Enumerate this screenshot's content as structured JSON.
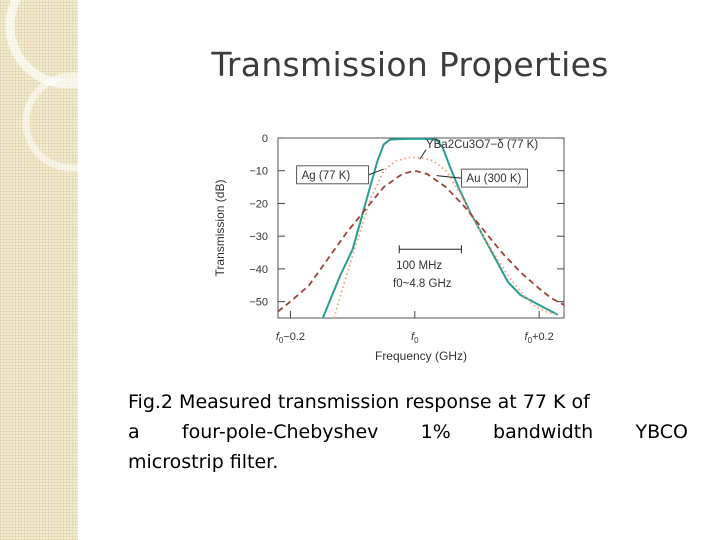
{
  "slide": {
    "title": "Transmission Properties",
    "caption_lines": [
      "Fig.2 Measured transmission response  at 77 K of",
      "a four-pole-Chebyshev 1% bandwidth YBCO",
      "microstrip filter."
    ]
  },
  "chart_data": {
    "type": "line",
    "xlabel": "Frequency (GHz)",
    "ylabel": "Transmission (dB)",
    "x_unit": "GHz offset from f0",
    "xlim": [
      -0.22,
      0.24
    ],
    "ylim": [
      -55,
      0
    ],
    "x_ticks": [
      {
        "value": -0.2,
        "label": "f0−0.2"
      },
      {
        "value": 0.0,
        "label": "f0"
      },
      {
        "value": 0.2,
        "label": "f0+0.2"
      }
    ],
    "y_ticks": [
      {
        "value": 0,
        "label": "0"
      },
      {
        "value": -10,
        "label": "−10"
      },
      {
        "value": -20,
        "label": "−20"
      },
      {
        "value": -30,
        "label": "−30"
      },
      {
        "value": -40,
        "label": "−40"
      },
      {
        "value": -50,
        "label": "−50"
      }
    ],
    "grid": false,
    "series": [
      {
        "name": "YBa2Cu3O7−δ (77 K)",
        "color": "#2a9d8f",
        "style": "solid",
        "points": [
          [
            -0.148,
            -55
          ],
          [
            -0.12,
            -42
          ],
          [
            -0.1,
            -34
          ],
          [
            -0.085,
            -24
          ],
          [
            -0.072,
            -15
          ],
          [
            -0.06,
            -7
          ],
          [
            -0.05,
            -2
          ],
          [
            -0.04,
            -0.5
          ],
          [
            -0.02,
            -0.3
          ],
          [
            0.0,
            -0.2
          ],
          [
            0.02,
            -0.3
          ],
          [
            0.035,
            -0.5
          ],
          [
            0.045,
            -3
          ],
          [
            0.055,
            -8
          ],
          [
            0.07,
            -15
          ],
          [
            0.09,
            -23
          ],
          [
            0.11,
            -30
          ],
          [
            0.13,
            -37
          ],
          [
            0.15,
            -44
          ],
          [
            0.17,
            -48
          ],
          [
            0.19,
            -50
          ],
          [
            0.21,
            -52
          ],
          [
            0.23,
            -54
          ]
        ]
      },
      {
        "name": "Ag (77 K)",
        "color": "#f0a07a",
        "style": "dotted",
        "points": [
          [
            -0.13,
            -55
          ],
          [
            -0.11,
            -42
          ],
          [
            -0.09,
            -30
          ],
          [
            -0.07,
            -18
          ],
          [
            -0.05,
            -10
          ],
          [
            -0.03,
            -7
          ],
          [
            -0.01,
            -6
          ],
          [
            0.01,
            -6
          ],
          [
            0.03,
            -7
          ],
          [
            0.05,
            -10
          ],
          [
            0.07,
            -16
          ],
          [
            0.09,
            -23
          ],
          [
            0.11,
            -30
          ],
          [
            0.13,
            -36
          ],
          [
            0.15,
            -42
          ],
          [
            0.17,
            -47
          ],
          [
            0.19,
            -51
          ],
          [
            0.21,
            -53
          ],
          [
            0.23,
            -54
          ]
        ]
      },
      {
        "name": "Au (300 K)",
        "color": "#a0403a",
        "style": "dashed",
        "points": [
          [
            -0.22,
            -53
          ],
          [
            -0.2,
            -50
          ],
          [
            -0.17,
            -45
          ],
          [
            -0.14,
            -37
          ],
          [
            -0.11,
            -29
          ],
          [
            -0.08,
            -22
          ],
          [
            -0.05,
            -15
          ],
          [
            -0.02,
            -11
          ],
          [
            0.0,
            -10
          ],
          [
            0.02,
            -11
          ],
          [
            0.05,
            -15
          ],
          [
            0.08,
            -21
          ],
          [
            0.11,
            -28
          ],
          [
            0.14,
            -35
          ],
          [
            0.17,
            -41
          ],
          [
            0.2,
            -46
          ],
          [
            0.22,
            -49
          ],
          [
            0.24,
            -51
          ]
        ]
      }
    ],
    "annotations": [
      {
        "text": "YBa2Cu3O7−δ (77 K)"
      },
      {
        "text": "Ag (77 K)"
      },
      {
        "text": "Au (300 K)"
      },
      {
        "text": "100 MHz"
      },
      {
        "text": "f0~4.8 GHz"
      }
    ]
  }
}
